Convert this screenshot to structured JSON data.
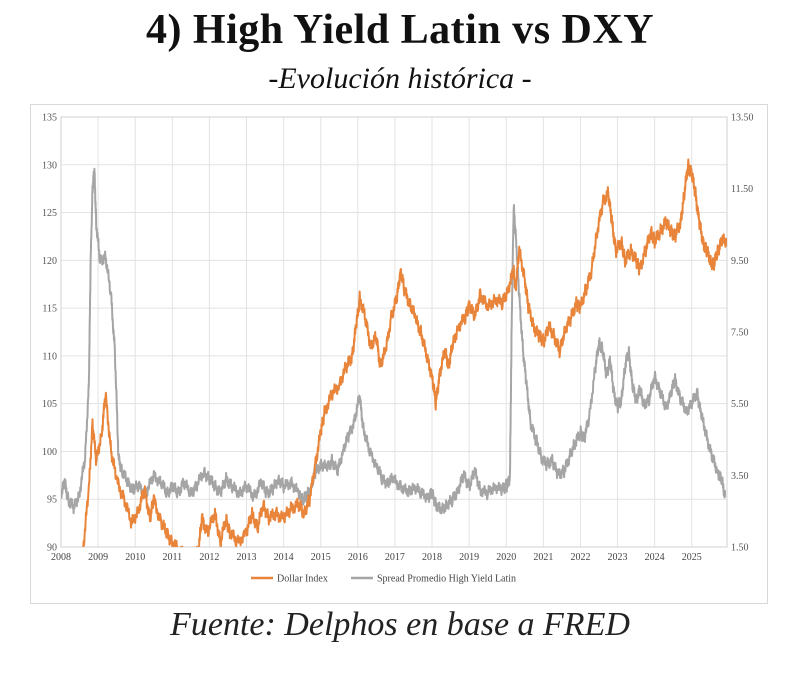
{
  "header": {
    "title": "4) High Yield Latin vs DXY",
    "subtitle": "-Evolución histórica -"
  },
  "footer": {
    "source": "Fuente: Delphos en base a FRED"
  },
  "chart_data": {
    "type": "line",
    "title": "4) High Yield Latin vs DXY",
    "subtitle": "-Evolución histórica -",
    "x_range": [
      2008.0,
      2025.95
    ],
    "x_ticks": [
      "2008",
      "2009",
      "2010",
      "2011",
      "2012",
      "2013",
      "2014",
      "2015",
      "2016",
      "2017",
      "2018",
      "2019",
      "2020",
      "2021",
      "2022",
      "2023",
      "2024",
      "2025"
    ],
    "y_left": {
      "min": 90,
      "max": 135,
      "ticks": [
        "90",
        "95",
        "100",
        "105",
        "110",
        "115",
        "120",
        "125",
        "130",
        "135"
      ]
    },
    "y_right": {
      "min": 1.5,
      "max": 13.5,
      "ticks": [
        "1.50",
        "3.50",
        "5.50",
        "7.50",
        "9.50",
        "11.50",
        "13.50"
      ]
    },
    "grid": true,
    "legend": "bottom",
    "series": [
      {
        "name": "Dollar Index",
        "axis": "left",
        "color": "#e8853a",
        "points": [
          [
            2008.6,
            90
          ],
          [
            2008.75,
            96
          ],
          [
            2008.85,
            103
          ],
          [
            2008.95,
            99
          ],
          [
            2009.1,
            102
          ],
          [
            2009.2,
            106
          ],
          [
            2009.35,
            100
          ],
          [
            2009.5,
            97
          ],
          [
            2009.7,
            95
          ],
          [
            2009.9,
            92.5
          ],
          [
            2010.1,
            94
          ],
          [
            2010.25,
            96
          ],
          [
            2010.4,
            93
          ],
          [
            2010.5,
            95
          ],
          [
            2010.7,
            92.5
          ],
          [
            2010.85,
            91.5
          ],
          [
            2011.0,
            90.5
          ],
          [
            2011.2,
            89.5
          ],
          [
            2011.7,
            89.5
          ],
          [
            2011.8,
            93
          ],
          [
            2011.95,
            91.5
          ],
          [
            2012.15,
            93.5
          ],
          [
            2012.3,
            90.5
          ],
          [
            2012.45,
            93
          ],
          [
            2012.55,
            91.5
          ],
          [
            2012.75,
            90.5
          ],
          [
            2013.0,
            91.5
          ],
          [
            2013.15,
            93.5
          ],
          [
            2013.3,
            92
          ],
          [
            2013.45,
            94.5
          ],
          [
            2013.6,
            93
          ],
          [
            2013.8,
            93.5
          ],
          [
            2014.0,
            93
          ],
          [
            2014.2,
            94
          ],
          [
            2014.4,
            94.5
          ],
          [
            2014.55,
            93.5
          ],
          [
            2014.7,
            95
          ],
          [
            2014.85,
            98.5
          ],
          [
            2015.0,
            102
          ],
          [
            2015.1,
            104
          ],
          [
            2015.3,
            106
          ],
          [
            2015.5,
            107
          ],
          [
            2015.7,
            109
          ],
          [
            2015.85,
            110
          ],
          [
            2015.95,
            113
          ],
          [
            2016.05,
            116
          ],
          [
            2016.2,
            114
          ],
          [
            2016.35,
            111
          ],
          [
            2016.5,
            112
          ],
          [
            2016.6,
            109
          ],
          [
            2016.75,
            110.5
          ],
          [
            2016.9,
            114
          ],
          [
            2017.05,
            116
          ],
          [
            2017.15,
            119
          ],
          [
            2017.25,
            117
          ],
          [
            2017.4,
            115.5
          ],
          [
            2017.55,
            114
          ],
          [
            2017.7,
            112.5
          ],
          [
            2017.85,
            110
          ],
          [
            2018.0,
            108
          ],
          [
            2018.1,
            105
          ],
          [
            2018.2,
            108
          ],
          [
            2018.35,
            110.5
          ],
          [
            2018.45,
            109
          ],
          [
            2018.55,
            111
          ],
          [
            2018.7,
            113
          ],
          [
            2018.9,
            114
          ],
          [
            2019.0,
            115.5
          ],
          [
            2019.15,
            114
          ],
          [
            2019.3,
            116.5
          ],
          [
            2019.5,
            115
          ],
          [
            2019.7,
            116
          ],
          [
            2019.9,
            115.5
          ],
          [
            2020.05,
            117
          ],
          [
            2020.2,
            119
          ],
          [
            2020.25,
            117
          ],
          [
            2020.35,
            121
          ],
          [
            2020.5,
            118
          ],
          [
            2020.6,
            115
          ],
          [
            2020.75,
            113
          ],
          [
            2020.9,
            112
          ],
          [
            2021.0,
            111.5
          ],
          [
            2021.15,
            113
          ],
          [
            2021.3,
            112
          ],
          [
            2021.45,
            110.5
          ],
          [
            2021.6,
            113
          ],
          [
            2021.75,
            114
          ],
          [
            2021.9,
            115.5
          ],
          [
            2022.0,
            115
          ],
          [
            2022.15,
            117
          ],
          [
            2022.3,
            119
          ],
          [
            2022.45,
            123
          ],
          [
            2022.6,
            126
          ],
          [
            2022.75,
            127
          ],
          [
            2022.85,
            124
          ],
          [
            2022.95,
            121
          ],
          [
            2023.1,
            122
          ],
          [
            2023.2,
            120
          ],
          [
            2023.35,
            121
          ],
          [
            2023.5,
            120
          ],
          [
            2023.6,
            119
          ],
          [
            2023.75,
            121
          ],
          [
            2023.9,
            123
          ],
          [
            2024.0,
            122
          ],
          [
            2024.15,
            123
          ],
          [
            2024.3,
            124
          ],
          [
            2024.45,
            123
          ],
          [
            2024.55,
            122.5
          ],
          [
            2024.7,
            124
          ],
          [
            2024.8,
            127
          ],
          [
            2024.9,
            130
          ],
          [
            2025.0,
            129
          ],
          [
            2025.1,
            127
          ],
          [
            2025.2,
            124
          ],
          [
            2025.3,
            122
          ],
          [
            2025.4,
            121
          ],
          [
            2025.5,
            120
          ],
          [
            2025.6,
            119.5
          ],
          [
            2025.7,
            121
          ],
          [
            2025.8,
            122
          ],
          [
            2025.95,
            122
          ]
        ]
      },
      {
        "name": "Spread Promedio High Yield Latin",
        "axis": "right",
        "color": "#a5a5a5",
        "points": [
          [
            2008.0,
            3.0
          ],
          [
            2008.1,
            3.3
          ],
          [
            2008.2,
            2.8
          ],
          [
            2008.35,
            2.6
          ],
          [
            2008.5,
            3.0
          ],
          [
            2008.65,
            4.0
          ],
          [
            2008.75,
            6.0
          ],
          [
            2008.8,
            9.5
          ],
          [
            2008.85,
            11.5
          ],
          [
            2008.9,
            12.0
          ],
          [
            2008.95,
            10.5
          ],
          [
            2009.05,
            9.5
          ],
          [
            2009.2,
            9.6
          ],
          [
            2009.35,
            8.5
          ],
          [
            2009.45,
            7.0
          ],
          [
            2009.55,
            4.0
          ],
          [
            2009.65,
            3.6
          ],
          [
            2009.8,
            3.3
          ],
          [
            2009.95,
            3.1
          ],
          [
            2010.1,
            3.2
          ],
          [
            2010.3,
            3.0
          ],
          [
            2010.5,
            3.5
          ],
          [
            2010.7,
            3.3
          ],
          [
            2010.85,
            3.0
          ],
          [
            2011.0,
            3.2
          ],
          [
            2011.15,
            3.0
          ],
          [
            2011.3,
            3.3
          ],
          [
            2011.5,
            3.0
          ],
          [
            2011.65,
            3.2
          ],
          [
            2011.85,
            3.6
          ],
          [
            2012.0,
            3.4
          ],
          [
            2012.15,
            3.2
          ],
          [
            2012.3,
            3.0
          ],
          [
            2012.45,
            3.4
          ],
          [
            2012.6,
            3.2
          ],
          [
            2012.8,
            3.0
          ],
          [
            2013.0,
            3.2
          ],
          [
            2013.2,
            2.9
          ],
          [
            2013.4,
            3.3
          ],
          [
            2013.55,
            3.0
          ],
          [
            2013.7,
            3.1
          ],
          [
            2013.85,
            3.4
          ],
          [
            2014.0,
            3.2
          ],
          [
            2014.2,
            3.3
          ],
          [
            2014.4,
            3.0
          ],
          [
            2014.5,
            2.8
          ],
          [
            2014.6,
            2.9
          ],
          [
            2014.75,
            3.2
          ],
          [
            2014.85,
            3.6
          ],
          [
            2015.0,
            3.8
          ],
          [
            2015.15,
            3.7
          ],
          [
            2015.3,
            3.9
          ],
          [
            2015.45,
            3.6
          ],
          [
            2015.6,
            4.2
          ],
          [
            2015.75,
            4.6
          ],
          [
            2015.9,
            5.0
          ],
          [
            2016.05,
            5.7
          ],
          [
            2016.15,
            4.8
          ],
          [
            2016.3,
            4.2
          ],
          [
            2016.5,
            3.8
          ],
          [
            2016.65,
            3.4
          ],
          [
            2016.8,
            3.3
          ],
          [
            2016.95,
            3.4
          ],
          [
            2017.15,
            3.2
          ],
          [
            2017.35,
            3.0
          ],
          [
            2017.5,
            3.2
          ],
          [
            2017.7,
            3.0
          ],
          [
            2017.9,
            2.9
          ],
          [
            2018.0,
            3.0
          ],
          [
            2018.1,
            2.7
          ],
          [
            2018.25,
            2.5
          ],
          [
            2018.4,
            2.7
          ],
          [
            2018.55,
            2.8
          ],
          [
            2018.7,
            3.1
          ],
          [
            2018.85,
            3.5
          ],
          [
            2019.0,
            3.2
          ],
          [
            2019.15,
            3.6
          ],
          [
            2019.3,
            3.1
          ],
          [
            2019.5,
            3.0
          ],
          [
            2019.7,
            3.2
          ],
          [
            2019.9,
            3.1
          ],
          [
            2020.0,
            3.2
          ],
          [
            2020.1,
            3.4
          ],
          [
            2020.15,
            8.0
          ],
          [
            2020.2,
            11.0
          ],
          [
            2020.27,
            10.0
          ],
          [
            2020.35,
            8.5
          ],
          [
            2020.45,
            7.0
          ],
          [
            2020.55,
            6.0
          ],
          [
            2020.65,
            5.0
          ],
          [
            2020.8,
            4.5
          ],
          [
            2020.95,
            4.0
          ],
          [
            2021.1,
            3.8
          ],
          [
            2021.25,
            3.9
          ],
          [
            2021.4,
            3.5
          ],
          [
            2021.55,
            3.6
          ],
          [
            2021.7,
            4.0
          ],
          [
            2021.85,
            4.4
          ],
          [
            2022.0,
            4.7
          ],
          [
            2022.1,
            4.5
          ],
          [
            2022.25,
            5.2
          ],
          [
            2022.4,
            6.5
          ],
          [
            2022.5,
            7.2
          ],
          [
            2022.6,
            7.0
          ],
          [
            2022.7,
            6.3
          ],
          [
            2022.8,
            6.7
          ],
          [
            2022.9,
            5.8
          ],
          [
            2023.0,
            5.4
          ],
          [
            2023.1,
            5.6
          ],
          [
            2023.2,
            6.5
          ],
          [
            2023.3,
            7.0
          ],
          [
            2023.4,
            6.0
          ],
          [
            2023.5,
            5.6
          ],
          [
            2023.6,
            5.9
          ],
          [
            2023.7,
            5.5
          ],
          [
            2023.85,
            5.6
          ],
          [
            2024.0,
            6.3
          ],
          [
            2024.15,
            5.8
          ],
          [
            2024.3,
            5.4
          ],
          [
            2024.45,
            5.8
          ],
          [
            2024.55,
            6.2
          ],
          [
            2024.7,
            5.6
          ],
          [
            2024.85,
            5.3
          ],
          [
            2025.0,
            5.5
          ],
          [
            2025.15,
            5.8
          ],
          [
            2025.25,
            5.2
          ],
          [
            2025.4,
            4.6
          ],
          [
            2025.55,
            4.0
          ],
          [
            2025.7,
            3.6
          ],
          [
            2025.8,
            3.4
          ],
          [
            2025.9,
            2.9
          ]
        ]
      }
    ]
  }
}
